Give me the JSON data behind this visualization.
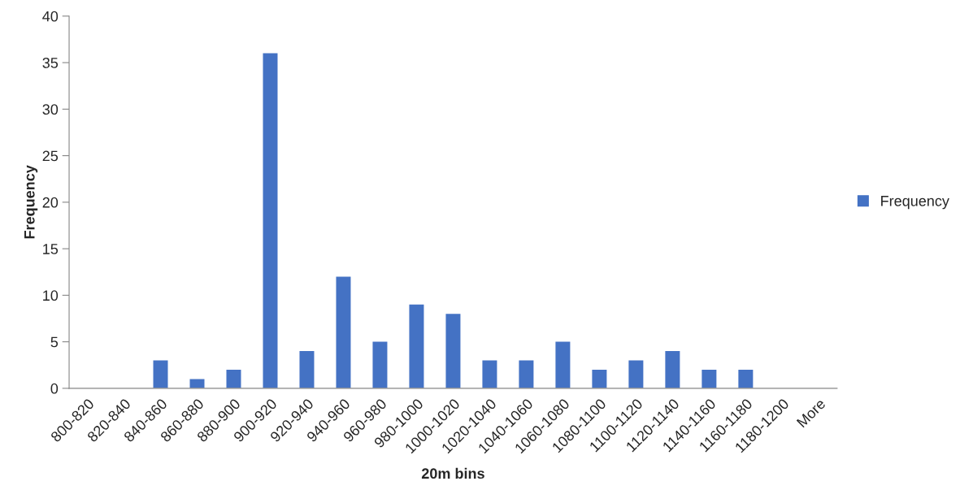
{
  "chart_data": {
    "type": "bar",
    "xlabel": "20m bins",
    "ylabel": "Frequency",
    "categories": [
      "800-820",
      "820-840",
      "840-860",
      "860-880",
      "880-900",
      "900-920",
      "920-940",
      "940-960",
      "960-980",
      "980-1000",
      "1000-1020",
      "1020-1040",
      "1040-1060",
      "1060-1080",
      "1080-1100",
      "1100-1120",
      "1120-1140",
      "1140-1160",
      "1160-1180",
      "1180-1200",
      "More"
    ],
    "series": [
      {
        "name": "Frequency",
        "color": "#4472c4",
        "values": [
          0,
          0,
          3,
          1,
          2,
          36,
          4,
          12,
          5,
          9,
          8,
          3,
          3,
          5,
          2,
          3,
          4,
          2,
          2,
          0,
          0
        ]
      }
    ],
    "ylim": [
      0,
      40
    ],
    "yticks": [
      0,
      5,
      10,
      15,
      20,
      25,
      30,
      35,
      40
    ],
    "grid": false,
    "legend": "right"
  }
}
